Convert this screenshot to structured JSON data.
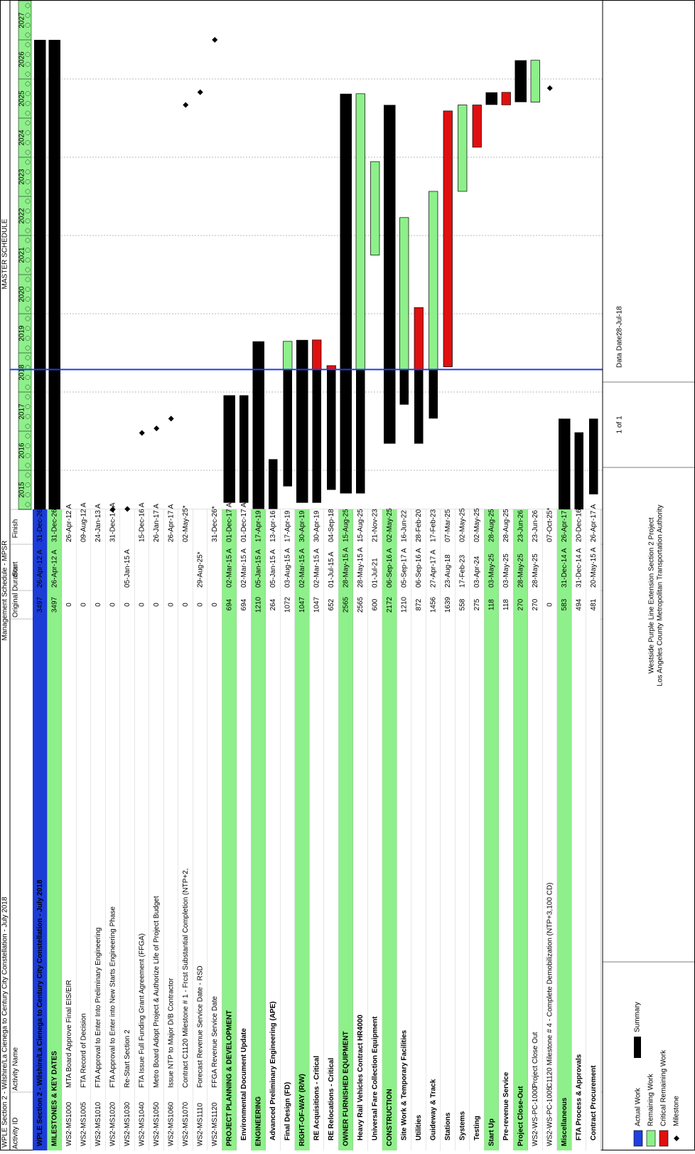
{
  "header": {
    "title": "WPLE Section 2 - Wilshire/La Cienega to Century City Constellation - July 2018",
    "center": "Management Schedule - MPSR",
    "right": "MASTER SCHEDULE"
  },
  "columns": {
    "id": "Activity ID",
    "name": "Activity Name",
    "duration": "Original Duration",
    "start": "Start",
    "finish": "Finish"
  },
  "timeline": {
    "years": [
      2015,
      2016,
      2017,
      2018,
      2019,
      2020,
      2021,
      2022,
      2023,
      2024,
      2025,
      2026,
      2027
    ],
    "data_date": "28-Jul-18"
  },
  "table": {
    "rows": [
      {
        "kind": "project",
        "name": "WPLE Section 2 - Wilshire/La Cienega to Century City Constellation - July 2018",
        "duration": 3497,
        "start": "26-Apr-12 A",
        "finish": "31-Dec-26"
      },
      {
        "kind": "group",
        "name": "MILESTONES & KEY DATES",
        "duration": 3497,
        "start": "26-Apr-12 A",
        "finish": "31-Dec-26"
      },
      {
        "kind": "task",
        "id": "WS2-MS1000",
        "name": "MTA Board Approve Final EIS/EIR",
        "duration": 0,
        "finish": "26-Apr-12 A"
      },
      {
        "kind": "task",
        "id": "WS2-MS1005",
        "name": "FTA Record of Decision",
        "duration": 0,
        "finish": "09-Aug-12 A"
      },
      {
        "kind": "task",
        "id": "WS2-MS1010",
        "name": "FTA Approval to Enter Into Preliminary Engineering",
        "duration": 0,
        "finish": "24-Jan-13 A"
      },
      {
        "kind": "task",
        "id": "WS2-MS1020",
        "name": "FTA Approval to Enter into New Starts Engineering Phase",
        "duration": 0,
        "finish": "31-Dec-14 A"
      },
      {
        "kind": "task",
        "id": "WS2-MS1030",
        "name": "Re-Start Section 2",
        "duration": 0,
        "start": "05-Jan-15 A"
      },
      {
        "kind": "task",
        "id": "WS2-MS1040",
        "name": "FTA Issue Full Funding Grant Agreement (FFGA)",
        "duration": 0,
        "finish": "15-Dec-16 A"
      },
      {
        "kind": "task",
        "id": "WS2-MS1050",
        "name": "Metro Board Adopt Project & Authorize Life of Project Budget",
        "duration": 0,
        "finish": "26-Jan-17 A"
      },
      {
        "kind": "task",
        "id": "WS2-MS1060",
        "name": "Issue NTP to Major D/B Contractor",
        "duration": 0,
        "finish": "26-Apr-17 A"
      },
      {
        "kind": "task",
        "id": "WS2-MS1070",
        "name": "Contract C1120 Milestone # 1 - Frcst Substantial Completion (NTP+2,",
        "duration": 0,
        "finish": "02-May-25*"
      },
      {
        "kind": "task",
        "id": "WS2-MS1110",
        "name": "Forecast Revenue Service Date - RSD",
        "duration": 0,
        "start": "29-Aug-25*"
      },
      {
        "kind": "task",
        "id": "WS2-MS1120",
        "name": "FFGA Revenue Service Date",
        "duration": 0,
        "finish": "31-Dec-26*"
      },
      {
        "kind": "group",
        "name": "PROJECT PLANNING & DEVELOPMENT",
        "duration": 694,
        "start": "02-Mar-15 A",
        "finish": "01-Dec-17 A"
      },
      {
        "kind": "sub",
        "name": "Environmental Document Update",
        "duration": 694,
        "start": "02-Mar-15 A",
        "finish": "01-Dec-17 A"
      },
      {
        "kind": "group",
        "name": "ENGINEERING",
        "duration": 1210,
        "start": "05-Jan-15 A",
        "finish": "17-Apr-19"
      },
      {
        "kind": "sub",
        "name": "Advanced Preliminary Engineering (APE)",
        "duration": 264,
        "start": "05-Jan-15 A",
        "finish": "13-Apr-16 A"
      },
      {
        "kind": "sub",
        "name": "Final Design (FD)",
        "duration": 1072,
        "start": "03-Aug-15 A",
        "finish": "17-Apr-19"
      },
      {
        "kind": "group",
        "name": "RIGHT-OF-WAY (R/W)",
        "duration": 1047,
        "start": "02-Mar-15 A",
        "finish": "30-Apr-19"
      },
      {
        "kind": "sub",
        "name": "RE Acquisitions - Critical",
        "duration": 1047,
        "start": "02-Mar-15 A",
        "finish": "30-Apr-19",
        "critical": true
      },
      {
        "kind": "sub",
        "name": "RE Relocations - Critical",
        "duration": 652,
        "start": "01-Jul-15 A",
        "finish": "04-Sep-18",
        "critical": true
      },
      {
        "kind": "group",
        "name": "OWNER FURNISHED EQUIPMENT",
        "duration": 2565,
        "start": "28-May-15 A",
        "finish": "15-Aug-25"
      },
      {
        "kind": "sub",
        "name": "Heavy Rail Vehicles Contract HR4000",
        "duration": 2565,
        "start": "28-May-15 A",
        "finish": "15-Aug-25"
      },
      {
        "kind": "sub",
        "name": "Universal Fare Collection Equipment",
        "duration": 600,
        "start": "01-Jul-21",
        "finish": "21-Nov-23"
      },
      {
        "kind": "group",
        "name": "CONSTRUCTION",
        "duration": 2172,
        "start": "06-Sep-16 A",
        "finish": "02-May-25"
      },
      {
        "kind": "sub",
        "name": "Site Work & Temporary Facilities",
        "duration": 1210,
        "start": "05-Sep-17 A",
        "finish": "16-Jun-22"
      },
      {
        "kind": "sub",
        "name": "Utilities",
        "duration": 872,
        "start": "06-Sep-16 A",
        "finish": "28-Feb-20",
        "critical": true
      },
      {
        "kind": "sub",
        "name": "Guideway & Track",
        "duration": 1456,
        "start": "27-Apr-17 A",
        "finish": "17-Feb-23"
      },
      {
        "kind": "sub",
        "name": "Stations",
        "duration": 1639,
        "start": "23-Aug-18",
        "finish": "07-Mar-25",
        "critical": true
      },
      {
        "kind": "sub",
        "name": "Systems",
        "duration": 558,
        "start": "17-Feb-23",
        "finish": "02-May-25"
      },
      {
        "kind": "sub",
        "name": "Testing",
        "duration": 275,
        "start": "03-Apr-24",
        "finish": "02-May-25",
        "critical": true
      },
      {
        "kind": "group",
        "name": "Start Up",
        "duration": 118,
        "start": "03-May-25",
        "finish": "28-Aug-25"
      },
      {
        "kind": "sub",
        "name": "Pre-revenue Service",
        "duration": 118,
        "start": "03-May-25",
        "finish": "28-Aug-25",
        "critical": true
      },
      {
        "kind": "group",
        "name": "Project Close-Out",
        "duration": 270,
        "start": "28-May-25",
        "finish": "23-Jun-26"
      },
      {
        "kind": "task",
        "id": "WS2-WS-PC-1000",
        "name": "Project Close Out",
        "duration": 270,
        "start": "28-May-25",
        "finish": "23-Jun-26"
      },
      {
        "kind": "task",
        "id": "WS2-WS-PC-1005",
        "name": "C1120 Milestone # 4 - Complete Demobilization (NTP+3,100 CD)",
        "duration": 0,
        "finish": "07-Oct-25*"
      },
      {
        "kind": "group",
        "name": "Miscellaneous",
        "duration": 583,
        "start": "31-Dec-14 A",
        "finish": "26-Apr-17 A"
      },
      {
        "kind": "sub",
        "name": "FTA Process & Approvals",
        "duration": 494,
        "start": "31-Dec-14 A",
        "finish": "20-Dec-16 A"
      },
      {
        "kind": "sub",
        "name": "Contract Procurement",
        "duration": 481,
        "start": "20-May-15 A",
        "finish": "26-Apr-17 A"
      }
    ]
  },
  "legend": {
    "actual": "Actual Work",
    "remaining": "Remaining Work",
    "critical": "Critical Remaining Work",
    "milestone": "Milestone",
    "summary": "Summary"
  },
  "footer": {
    "project": "Westside Purple Line Extension Section 2 Project",
    "agency": "Los Angeles County Metropolitan Transportation Authority",
    "page": "1 of 1",
    "data_date_label": "Data Date:"
  }
}
